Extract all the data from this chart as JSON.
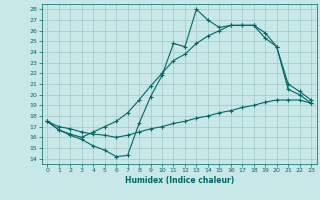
{
  "xlabel": "Humidex (Indice chaleur)",
  "bg_color": "#c8e8e8",
  "line_color": "#006666",
  "xlim": [
    -0.5,
    23.5
  ],
  "ylim": [
    13.5,
    28.5
  ],
  "yticks": [
    14,
    15,
    16,
    17,
    18,
    19,
    20,
    21,
    22,
    23,
    24,
    25,
    26,
    27,
    28
  ],
  "xticks": [
    0,
    1,
    2,
    3,
    4,
    5,
    6,
    7,
    8,
    9,
    10,
    11,
    12,
    13,
    14,
    15,
    16,
    17,
    18,
    19,
    20,
    21,
    22,
    23
  ],
  "line1_x": [
    0,
    1,
    2,
    3,
    4,
    5,
    6,
    7,
    8,
    9,
    10,
    11,
    12,
    13,
    14,
    15,
    16,
    17,
    18,
    19,
    20,
    21,
    22,
    23
  ],
  "line1_y": [
    17.5,
    16.7,
    16.2,
    15.8,
    15.2,
    14.8,
    14.2,
    14.3,
    17.3,
    19.8,
    21.8,
    24.8,
    24.5,
    28.0,
    27.0,
    26.3,
    26.5,
    26.5,
    26.5,
    25.3,
    24.5,
    21.0,
    20.3,
    19.5
  ],
  "line2_x": [
    0,
    1,
    2,
    3,
    4,
    5,
    6,
    7,
    8,
    9,
    10,
    11,
    12,
    13,
    14,
    15,
    16,
    17,
    18,
    19,
    20,
    21,
    22,
    23
  ],
  "line2_y": [
    17.5,
    16.7,
    16.3,
    16.0,
    16.5,
    17.0,
    17.5,
    18.3,
    19.5,
    20.8,
    22.0,
    23.2,
    23.8,
    24.8,
    25.5,
    26.0,
    26.5,
    26.5,
    26.5,
    25.8,
    24.5,
    20.5,
    20.0,
    19.2
  ],
  "line3_x": [
    0,
    1,
    2,
    3,
    4,
    5,
    6,
    7,
    8,
    9,
    10,
    11,
    12,
    13,
    14,
    15,
    16,
    17,
    18,
    19,
    20,
    21,
    22,
    23
  ],
  "line3_y": [
    17.5,
    17.0,
    16.8,
    16.5,
    16.3,
    16.2,
    16.0,
    16.2,
    16.5,
    16.8,
    17.0,
    17.3,
    17.5,
    17.8,
    18.0,
    18.3,
    18.5,
    18.8,
    19.0,
    19.3,
    19.5,
    19.5,
    19.5,
    19.2
  ]
}
